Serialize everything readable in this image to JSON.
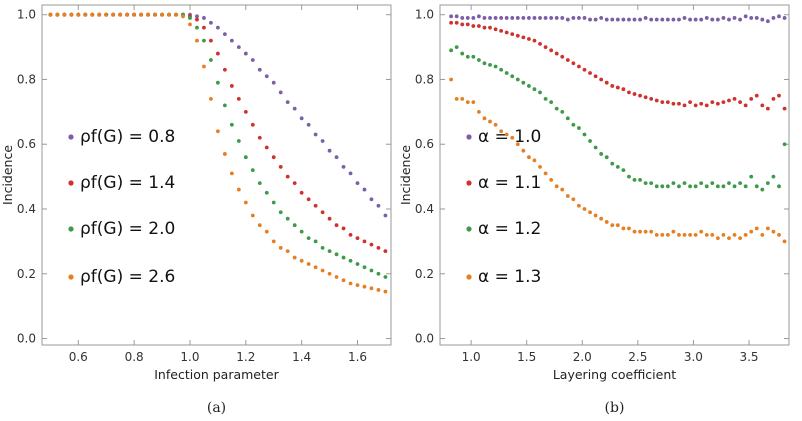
{
  "chart_data": [
    {
      "type": "scatter",
      "caption": "(a)",
      "xlabel": "Infection parameter",
      "ylabel": "Incidence",
      "xlim": [
        0.47,
        1.72
      ],
      "ylim": [
        -0.02,
        1.03
      ],
      "xticks": [
        "0.6",
        "0.8",
        "1.0",
        "1.2",
        "1.4",
        "1.6"
      ],
      "yticks": [
        "0.0",
        "0.2",
        "0.4",
        "0.6",
        "0.8",
        "1.0"
      ],
      "legend_position": "left-middle",
      "series": [
        {
          "name": "ρf(G) = 0.8",
          "color": "#7b5ea7",
          "x0": 0.5,
          "dx": 0.025,
          "n": 49,
          "y": [
            1,
            1,
            1,
            1,
            1,
            1,
            1,
            1,
            1,
            1,
            1,
            1,
            1,
            1,
            1,
            1,
            1,
            1,
            1,
            1,
            1,
            0.995,
            0.99,
            0.975,
            0.96,
            0.94,
            0.92,
            0.9,
            0.88,
            0.86,
            0.83,
            0.81,
            0.79,
            0.76,
            0.73,
            0.71,
            0.68,
            0.66,
            0.63,
            0.61,
            0.58,
            0.56,
            0.53,
            0.51,
            0.48,
            0.46,
            0.43,
            0.41,
            0.38
          ]
        },
        {
          "name": "ρf(G) = 1.4",
          "color": "#d0312d",
          "x0": 0.5,
          "dx": 0.025,
          "n": 49,
          "y": [
            1,
            1,
            1,
            1,
            1,
            1,
            1,
            1,
            1,
            1,
            1,
            1,
            1,
            1,
            1,
            1,
            1,
            1,
            1,
            1,
            0.995,
            0.985,
            0.96,
            0.92,
            0.88,
            0.83,
            0.78,
            0.74,
            0.7,
            0.66,
            0.62,
            0.59,
            0.56,
            0.53,
            0.5,
            0.48,
            0.45,
            0.43,
            0.41,
            0.39,
            0.37,
            0.35,
            0.34,
            0.32,
            0.31,
            0.3,
            0.29,
            0.28,
            0.27
          ]
        },
        {
          "name": "ρf(G) = 2.0",
          "color": "#3d9b48",
          "x0": 0.5,
          "dx": 0.025,
          "n": 49,
          "y": [
            1,
            1,
            1,
            1,
            1,
            1,
            1,
            1,
            1,
            1,
            1,
            1,
            1,
            1,
            1,
            1,
            1,
            1,
            1,
            1,
            0.99,
            0.96,
            0.92,
            0.86,
            0.79,
            0.72,
            0.66,
            0.61,
            0.56,
            0.52,
            0.48,
            0.45,
            0.42,
            0.39,
            0.37,
            0.35,
            0.33,
            0.31,
            0.3,
            0.28,
            0.27,
            0.26,
            0.25,
            0.24,
            0.23,
            0.22,
            0.21,
            0.2,
            0.19
          ]
        },
        {
          "name": "ρf(G) = 2.6",
          "color": "#e67e22",
          "x0": 0.5,
          "dx": 0.025,
          "n": 49,
          "y": [
            1,
            1,
            1,
            1,
            1,
            1,
            1,
            1,
            1,
            1,
            1,
            1,
            1,
            1,
            1,
            1,
            1,
            1,
            1,
            0.995,
            0.97,
            0.92,
            0.84,
            0.74,
            0.64,
            0.57,
            0.51,
            0.46,
            0.42,
            0.38,
            0.35,
            0.33,
            0.3,
            0.28,
            0.27,
            0.25,
            0.24,
            0.23,
            0.22,
            0.21,
            0.2,
            0.19,
            0.18,
            0.17,
            0.165,
            0.16,
            0.155,
            0.15,
            0.145
          ]
        }
      ]
    },
    {
      "type": "scatter",
      "caption": "(b)",
      "xlabel": "Layering coefficient",
      "ylabel": "Incidence",
      "xlim": [
        0.72,
        3.86
      ],
      "ylim": [
        -0.02,
        1.03
      ],
      "xticks": [
        "1.0",
        "1.5",
        "2.0",
        "2.5",
        "3.0",
        "3.5"
      ],
      "yticks": [
        "0.0",
        "0.2",
        "0.4",
        "0.6",
        "0.8",
        "1.0"
      ],
      "legend_position": "left-middle",
      "series": [
        {
          "name": "α = 1.0",
          "color": "#7b5ea7",
          "x0": 0.82,
          "dx": 0.05,
          "n": 61,
          "y": [
            0.995,
            0.995,
            0.99,
            0.99,
            0.99,
            0.995,
            0.99,
            0.99,
            0.99,
            0.99,
            0.99,
            0.99,
            0.99,
            0.99,
            0.99,
            0.99,
            0.99,
            0.99,
            0.99,
            0.99,
            0.99,
            0.985,
            0.99,
            0.99,
            0.99,
            0.985,
            0.985,
            0.99,
            0.985,
            0.985,
            0.985,
            0.985,
            0.985,
            0.985,
            0.985,
            0.99,
            0.985,
            0.985,
            0.985,
            0.985,
            0.985,
            0.985,
            0.99,
            0.985,
            0.985,
            0.985,
            0.99,
            0.985,
            0.985,
            0.99,
            0.985,
            0.99,
            0.985,
            0.995,
            0.99,
            0.99,
            0.985,
            0.98,
            0.99,
            0.995,
            0.99
          ]
        },
        {
          "name": "α = 1.1",
          "color": "#d0312d",
          "x0": 0.82,
          "dx": 0.05,
          "n": 61,
          "y": [
            0.975,
            0.975,
            0.97,
            0.97,
            0.965,
            0.965,
            0.96,
            0.96,
            0.955,
            0.95,
            0.945,
            0.94,
            0.935,
            0.93,
            0.925,
            0.92,
            0.91,
            0.9,
            0.89,
            0.88,
            0.87,
            0.86,
            0.85,
            0.84,
            0.83,
            0.82,
            0.81,
            0.8,
            0.79,
            0.78,
            0.775,
            0.77,
            0.76,
            0.755,
            0.75,
            0.745,
            0.74,
            0.735,
            0.73,
            0.73,
            0.725,
            0.725,
            0.72,
            0.73,
            0.72,
            0.725,
            0.72,
            0.73,
            0.725,
            0.73,
            0.735,
            0.74,
            0.73,
            0.72,
            0.74,
            0.75,
            0.72,
            0.71,
            0.74,
            0.75,
            0.71
          ]
        },
        {
          "name": "α = 1.2",
          "color": "#3d9b48",
          "x0": 0.82,
          "dx": 0.05,
          "n": 61,
          "y": [
            0.89,
            0.9,
            0.88,
            0.87,
            0.87,
            0.86,
            0.85,
            0.845,
            0.84,
            0.83,
            0.82,
            0.81,
            0.8,
            0.79,
            0.78,
            0.77,
            0.76,
            0.74,
            0.73,
            0.71,
            0.7,
            0.68,
            0.66,
            0.65,
            0.63,
            0.61,
            0.59,
            0.57,
            0.56,
            0.54,
            0.53,
            0.52,
            0.5,
            0.49,
            0.49,
            0.48,
            0.48,
            0.47,
            0.47,
            0.47,
            0.48,
            0.47,
            0.48,
            0.47,
            0.47,
            0.48,
            0.47,
            0.48,
            0.47,
            0.47,
            0.48,
            0.47,
            0.48,
            0.47,
            0.5,
            0.47,
            0.46,
            0.48,
            0.5,
            0.47,
            0.6
          ]
        },
        {
          "name": "α = 1.3",
          "color": "#e67e22",
          "x0": 0.82,
          "dx": 0.05,
          "n": 61,
          "y": [
            0.8,
            0.74,
            0.74,
            0.73,
            0.73,
            0.7,
            0.68,
            0.67,
            0.66,
            0.64,
            0.63,
            0.62,
            0.6,
            0.58,
            0.56,
            0.55,
            0.53,
            0.51,
            0.49,
            0.47,
            0.46,
            0.44,
            0.43,
            0.41,
            0.4,
            0.39,
            0.38,
            0.37,
            0.36,
            0.35,
            0.35,
            0.34,
            0.34,
            0.33,
            0.33,
            0.33,
            0.33,
            0.32,
            0.32,
            0.32,
            0.33,
            0.32,
            0.32,
            0.32,
            0.32,
            0.33,
            0.32,
            0.32,
            0.31,
            0.32,
            0.31,
            0.32,
            0.31,
            0.32,
            0.33,
            0.34,
            0.32,
            0.34,
            0.33,
            0.32,
            0.3
          ]
        }
      ]
    }
  ]
}
